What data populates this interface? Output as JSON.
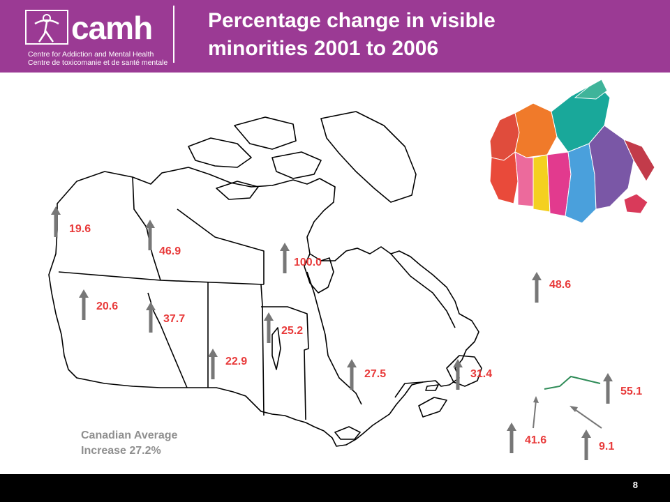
{
  "header": {
    "logo_word": "camh",
    "logo_line1": "Centre for Addiction and Mental Health",
    "logo_line2": "Centre de toxicomanie et de santé mentale",
    "title_line1": "Percentage change in visible",
    "title_line2": "minorities 2001 to 2006"
  },
  "regions": [
    {
      "name": "Yukon",
      "value": "19.6"
    },
    {
      "name": "Northwest Territories",
      "value": "46.9"
    },
    {
      "name": "Nunavut",
      "value": "100.0"
    },
    {
      "name": "Newfoundland and Labrador",
      "value": "48.6"
    },
    {
      "name": "British Columbia",
      "value": "20.6"
    },
    {
      "name": "Alberta",
      "value": "37.7"
    },
    {
      "name": "Manitoba",
      "value": "25.2"
    },
    {
      "name": "Saskatchewan",
      "value": "22.9"
    },
    {
      "name": "Ontario",
      "value": "27.5"
    },
    {
      "name": "Quebec",
      "value": "31.4"
    },
    {
      "name": "Prince Edward Island",
      "value": "55.1"
    },
    {
      "name": "New Brunswick",
      "value": "41.6"
    },
    {
      "name": "Nova Scotia",
      "value": "9.1"
    }
  ],
  "average": {
    "line1": "Canadian Average",
    "line2": "Increase 27.2%"
  },
  "footer": {
    "page_number": "8"
  },
  "colors": {
    "header_bg": "#9b3a94",
    "value_text": "#e83a3a",
    "arrow": "#777777",
    "average_text": "#8f8f8f"
  }
}
